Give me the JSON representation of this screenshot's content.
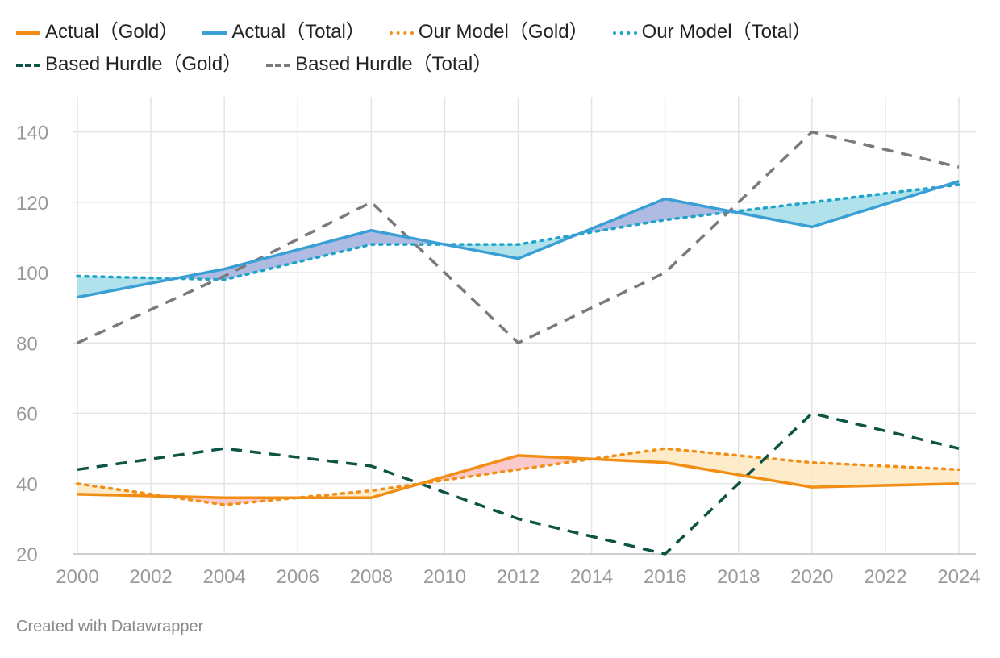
{
  "chart_data": {
    "type": "line",
    "x": [
      2000,
      2002,
      2004,
      2006,
      2008,
      2010,
      2012,
      2014,
      2016,
      2018,
      2020,
      2022,
      2024
    ],
    "x_ticks": [
      "2000",
      "2002",
      "2004",
      "2006",
      "2008",
      "2010",
      "2012",
      "2014",
      "2016",
      "2018",
      "2020",
      "2022",
      "2024"
    ],
    "y_ticks": [
      "20",
      "40",
      "60",
      "80",
      "100",
      "120",
      "140"
    ],
    "ylim": [
      20,
      150
    ],
    "xlim": [
      2000,
      2024
    ],
    "grid": true,
    "legend_position": "top",
    "series": [
      {
        "name": "Actual（Gold）",
        "color": "#f28e16",
        "style": "solid",
        "x": [
          2000,
          2004,
          2008,
          2012,
          2016,
          2020,
          2024
        ],
        "values": [
          37,
          36,
          36,
          48,
          46,
          39,
          40
        ]
      },
      {
        "name": "Actual（Total）",
        "color": "#3a9fd5",
        "style": "solid",
        "x": [
          2000,
          2004,
          2008,
          2012,
          2016,
          2020,
          2024
        ],
        "values": [
          93,
          101,
          112,
          104,
          121,
          113,
          126
        ]
      },
      {
        "name": "Our Model（Gold）",
        "color": "#f28e16",
        "style": "dotted",
        "x": [
          2000,
          2004,
          2008,
          2012,
          2016,
          2020,
          2024
        ],
        "values": [
          40,
          34,
          38,
          44,
          50,
          46,
          44
        ]
      },
      {
        "name": "Our Model（Total）",
        "color": "#1ea3c9",
        "style": "dotted",
        "x": [
          2000,
          2004,
          2008,
          2012,
          2016,
          2020,
          2024
        ],
        "values": [
          99,
          98,
          108,
          108,
          115,
          120,
          125
        ]
      },
      {
        "name": "Based Hurdle（Gold）",
        "color": "#0e5445",
        "style": "dashed",
        "x": [
          2000,
          2004,
          2008,
          2012,
          2016,
          2020,
          2024
        ],
        "values": [
          44,
          50,
          45,
          30,
          20,
          60,
          50
        ]
      },
      {
        "name": "Based Hurdle（Total）",
        "color": "#7a7a7a",
        "style": "dashed",
        "x": [
          2000,
          2004,
          2008,
          2012,
          2016,
          2020,
          2024
        ],
        "values": [
          80,
          99,
          120,
          80,
          100,
          140,
          130
        ]
      }
    ],
    "fills": {
      "gold": {
        "above_color": "#fde9c4",
        "below_color": "#f9c4c4"
      },
      "total": {
        "above_color": "#a6b4e0",
        "below_color": "#a9dfe9"
      }
    }
  },
  "footer": {
    "text": "Created with Datawrapper"
  }
}
